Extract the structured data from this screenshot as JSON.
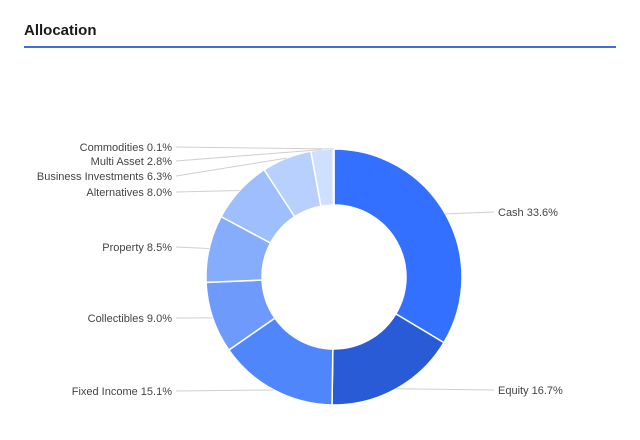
{
  "header": {
    "title": "Allocation"
  },
  "chart_data": {
    "type": "pie",
    "title": "Allocation",
    "donut": true,
    "slices": [
      {
        "label": "Cash 33.6%",
        "value": 33.6,
        "color": "#3370ff"
      },
      {
        "label": "Equity 16.7%",
        "value": 16.7,
        "color": "#2a5bd7"
      },
      {
        "label": "Fixed Income 15.1%",
        "value": 15.1,
        "color": "#4f86fb"
      },
      {
        "label": "Collectibles 9.0%",
        "value": 9.0,
        "color": "#6e9bfb"
      },
      {
        "label": "Property 8.5%",
        "value": 8.5,
        "color": "#86acfc"
      },
      {
        "label": "Alternatives 8.0%",
        "value": 8.0,
        "color": "#9ebefd"
      },
      {
        "label": "Business Investments 6.3%",
        "value": 6.3,
        "color": "#b8d0fd"
      },
      {
        "label": "Multi Asset 2.8%",
        "value": 2.8,
        "color": "#cfe0fe"
      },
      {
        "label": "Commodities 0.1%",
        "value": 0.1,
        "color": "#e3edff"
      }
    ]
  }
}
